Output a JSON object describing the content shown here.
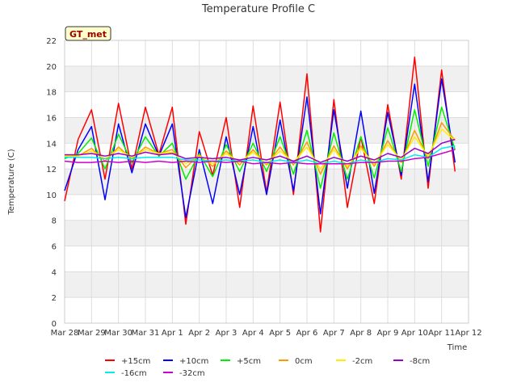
{
  "chart_data": {
    "type": "line",
    "title": "Temperature Profile C",
    "xlabel": "Time",
    "ylabel": "Temperature (C)",
    "ylim": [
      0,
      22
    ],
    "yticks": [
      0,
      2,
      4,
      6,
      8,
      10,
      12,
      14,
      16,
      18,
      20,
      22
    ],
    "xlim": [
      0,
      15
    ],
    "xticks": [
      0,
      1,
      2,
      3,
      4,
      5,
      6,
      7,
      8,
      9,
      10,
      11,
      12,
      13,
      14,
      15
    ],
    "xtick_labels": [
      "Mar 28",
      "Mar 29",
      "Mar 30",
      "Mar 31",
      "Apr 1",
      "Apr 2",
      "Apr 3",
      "Apr 4",
      "Apr 5",
      "Apr 6",
      "Apr 7",
      "Apr 8",
      "Apr 9",
      "Apr 10",
      "Apr 11",
      "Apr 12"
    ],
    "grid": true,
    "banded_background": true,
    "annotation": "GT_met",
    "legend_position": "bottom-center",
    "x": [
      0.0,
      0.5,
      1.0,
      1.5,
      2.0,
      2.5,
      3.0,
      3.5,
      4.0,
      4.5,
      5.0,
      5.5,
      6.0,
      6.5,
      7.0,
      7.5,
      8.0,
      8.5,
      9.0,
      9.5,
      10.0,
      10.5,
      11.0,
      11.5,
      12.0,
      12.5,
      13.0,
      13.5,
      14.0,
      14.5
    ],
    "series": [
      {
        "name": "+15cm",
        "color": "#ff0000",
        "values": [
          9.5,
          14.3,
          16.6,
          11.2,
          17.1,
          12.0,
          16.8,
          13.1,
          16.8,
          7.7,
          14.9,
          11.5,
          16.0,
          9.0,
          16.9,
          10.2,
          17.2,
          10.0,
          19.4,
          7.1,
          17.4,
          9.0,
          14.5,
          9.3,
          17.0,
          11.2,
          20.7,
          10.5,
          19.7,
          11.8
        ]
      },
      {
        "name": "+10cm",
        "color": "#0000ff",
        "values": [
          10.3,
          13.5,
          15.3,
          9.6,
          15.5,
          11.7,
          15.5,
          13.0,
          15.5,
          8.2,
          13.5,
          9.3,
          14.5,
          10.0,
          15.3,
          10.0,
          15.8,
          10.3,
          17.6,
          8.5,
          16.6,
          10.5,
          16.5,
          10.1,
          16.4,
          11.5,
          18.6,
          11.0,
          19.0,
          12.5
        ]
      },
      {
        "name": "+5cm",
        "color": "#00ee00",
        "values": [
          12.8,
          13.2,
          14.4,
          12.0,
          14.7,
          12.5,
          14.5,
          13.0,
          14.0,
          11.2,
          13.2,
          11.4,
          13.9,
          11.8,
          14.0,
          11.8,
          14.5,
          11.6,
          15.0,
          10.5,
          14.8,
          11.2,
          14.5,
          11.3,
          15.2,
          11.8,
          16.6,
          12.2,
          16.8,
          13.5
        ]
      },
      {
        "name": "0cm",
        "color": "#ff9900",
        "values": [
          13.0,
          13.0,
          13.6,
          12.6,
          13.7,
          12.8,
          13.7,
          13.2,
          13.5,
          12.1,
          13.1,
          12.2,
          13.4,
          12.3,
          13.5,
          12.3,
          13.7,
          12.3,
          14.1,
          11.6,
          13.8,
          12.0,
          13.8,
          12.2,
          14.2,
          12.5,
          15.0,
          12.8,
          15.6,
          14.2
        ]
      },
      {
        "name": "-2cm",
        "color": "#ffee00",
        "values": [
          13.0,
          13.0,
          13.4,
          12.8,
          13.5,
          12.9,
          13.5,
          13.2,
          13.3,
          12.4,
          13.0,
          12.4,
          13.2,
          12.5,
          13.3,
          12.4,
          13.4,
          12.5,
          13.7,
          12.0,
          13.5,
          12.2,
          13.6,
          12.4,
          13.9,
          12.7,
          14.5,
          13.0,
          15.1,
          14.2
        ]
      },
      {
        "name": "-8cm",
        "color": "#9900cc",
        "values": [
          13.1,
          13.1,
          13.2,
          13.0,
          13.2,
          13.0,
          13.3,
          13.1,
          13.2,
          12.8,
          12.9,
          12.8,
          12.9,
          12.7,
          12.9,
          12.7,
          13.0,
          12.6,
          13.0,
          12.5,
          12.9,
          12.6,
          13.0,
          12.7,
          13.2,
          12.9,
          13.6,
          13.2,
          14.0,
          14.3
        ]
      },
      {
        "name": "-16cm",
        "color": "#00eeee",
        "values": [
          12.9,
          12.9,
          12.9,
          12.8,
          12.9,
          12.8,
          12.9,
          12.9,
          12.9,
          12.7,
          12.7,
          12.6,
          12.7,
          12.6,
          12.7,
          12.5,
          12.7,
          12.5,
          12.7,
          12.4,
          12.6,
          12.4,
          12.7,
          12.5,
          12.8,
          12.7,
          13.1,
          12.9,
          13.6,
          13.8
        ]
      },
      {
        "name": "-32cm",
        "color": "#cc00cc",
        "values": [
          12.6,
          12.5,
          12.5,
          12.6,
          12.5,
          12.6,
          12.5,
          12.6,
          12.5,
          12.6,
          12.5,
          12.6,
          12.5,
          12.6,
          12.4,
          12.5,
          12.4,
          12.5,
          12.4,
          12.4,
          12.4,
          12.4,
          12.5,
          12.5,
          12.6,
          12.6,
          12.8,
          12.9,
          13.2,
          13.5
        ]
      }
    ]
  }
}
